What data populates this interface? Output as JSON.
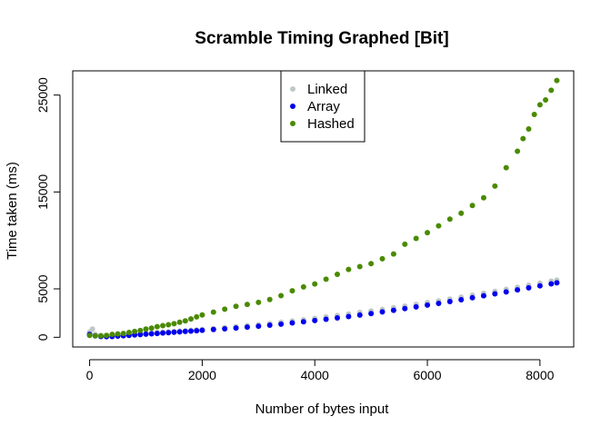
{
  "chart_data": {
    "type": "scatter",
    "title": "Scramble Timing Graphed [Bit]",
    "xlabel": "Number of bytes input",
    "ylabel": "Time taken (ms)",
    "xlim": [
      -300,
      8600
    ],
    "ylim": [
      -1000,
      27500
    ],
    "x_ticks": [
      0,
      2000,
      4000,
      6000,
      8000
    ],
    "y_ticks": [
      0,
      5000,
      15000,
      25000
    ],
    "grid": false,
    "legend_position": "top-center",
    "series": [
      {
        "name": "Linked",
        "color": "#bfc8c8",
        "points": [
          [
            0,
            550
          ],
          [
            50,
            850
          ],
          [
            100,
            300
          ],
          [
            200,
            200
          ],
          [
            300,
            150
          ],
          [
            400,
            250
          ],
          [
            500,
            250
          ],
          [
            600,
            300
          ],
          [
            700,
            330
          ],
          [
            800,
            360
          ],
          [
            900,
            400
          ],
          [
            1000,
            430
          ],
          [
            1100,
            460
          ],
          [
            1200,
            500
          ],
          [
            1300,
            530
          ],
          [
            1400,
            560
          ],
          [
            1500,
            600
          ],
          [
            1600,
            640
          ],
          [
            1700,
            680
          ],
          [
            1800,
            720
          ],
          [
            1900,
            760
          ],
          [
            2000,
            800
          ],
          [
            2200,
            900
          ],
          [
            2400,
            1000
          ],
          [
            2600,
            1100
          ],
          [
            2800,
            1200
          ],
          [
            3000,
            1300
          ],
          [
            3200,
            1420
          ],
          [
            3400,
            1550
          ],
          [
            3600,
            1680
          ],
          [
            3800,
            1810
          ],
          [
            4000,
            1950
          ],
          [
            4200,
            2100
          ],
          [
            4400,
            2250
          ],
          [
            4600,
            2400
          ],
          [
            4800,
            2560
          ],
          [
            5000,
            2720
          ],
          [
            5200,
            2880
          ],
          [
            5400,
            3050
          ],
          [
            5600,
            3220
          ],
          [
            5800,
            3400
          ],
          [
            6000,
            3580
          ],
          [
            6200,
            3760
          ],
          [
            6400,
            3950
          ],
          [
            6600,
            4140
          ],
          [
            6800,
            4340
          ],
          [
            7000,
            4540
          ],
          [
            7200,
            4740
          ],
          [
            7400,
            4950
          ],
          [
            7600,
            5160
          ],
          [
            7800,
            5370
          ],
          [
            8000,
            5580
          ],
          [
            8200,
            5800
          ],
          [
            8300,
            5900
          ]
        ]
      },
      {
        "name": "Array",
        "color": "#0000ee",
        "points": [
          [
            0,
            300
          ],
          [
            100,
            150
          ],
          [
            200,
            80
          ],
          [
            300,
            60
          ],
          [
            400,
            80
          ],
          [
            500,
            120
          ],
          [
            600,
            160
          ],
          [
            700,
            200
          ],
          [
            800,
            240
          ],
          [
            900,
            280
          ],
          [
            1000,
            320
          ],
          [
            1100,
            360
          ],
          [
            1200,
            400
          ],
          [
            1300,
            440
          ],
          [
            1400,
            480
          ],
          [
            1500,
            520
          ],
          [
            1600,
            560
          ],
          [
            1700,
            600
          ],
          [
            1800,
            640
          ],
          [
            1900,
            680
          ],
          [
            2000,
            720
          ],
          [
            2200,
            800
          ],
          [
            2400,
            880
          ],
          [
            2600,
            960
          ],
          [
            2800,
            1050
          ],
          [
            3000,
            1150
          ],
          [
            3200,
            1250
          ],
          [
            3400,
            1360
          ],
          [
            3600,
            1480
          ],
          [
            3800,
            1600
          ],
          [
            4000,
            1730
          ],
          [
            4200,
            1860
          ],
          [
            4400,
            2000
          ],
          [
            4600,
            2140
          ],
          [
            4800,
            2290
          ],
          [
            5000,
            2450
          ],
          [
            5200,
            2620
          ],
          [
            5400,
            2790
          ],
          [
            5600,
            2960
          ],
          [
            5800,
            3140
          ],
          [
            6000,
            3320
          ],
          [
            6200,
            3500
          ],
          [
            6400,
            3690
          ],
          [
            6600,
            3880
          ],
          [
            6800,
            4080
          ],
          [
            7000,
            4280
          ],
          [
            7200,
            4480
          ],
          [
            7400,
            4680
          ],
          [
            7600,
            4890
          ],
          [
            7800,
            5100
          ],
          [
            8000,
            5310
          ],
          [
            8200,
            5520
          ],
          [
            8300,
            5620
          ]
        ]
      },
      {
        "name": "Hashed",
        "color": "#4a8a00",
        "points": [
          [
            0,
            200
          ],
          [
            100,
            150
          ],
          [
            200,
            150
          ],
          [
            300,
            200
          ],
          [
            400,
            300
          ],
          [
            500,
            350
          ],
          [
            600,
            400
          ],
          [
            700,
            500
          ],
          [
            800,
            600
          ],
          [
            900,
            700
          ],
          [
            1000,
            850
          ],
          [
            1100,
            950
          ],
          [
            1200,
            1100
          ],
          [
            1300,
            1200
          ],
          [
            1400,
            1300
          ],
          [
            1500,
            1400
          ],
          [
            1600,
            1550
          ],
          [
            1700,
            1700
          ],
          [
            1800,
            1900
          ],
          [
            1900,
            2100
          ],
          [
            2000,
            2300
          ],
          [
            2200,
            2600
          ],
          [
            2400,
            2900
          ],
          [
            2600,
            3200
          ],
          [
            2800,
            3400
          ],
          [
            3000,
            3600
          ],
          [
            3200,
            3900
          ],
          [
            3400,
            4300
          ],
          [
            3600,
            4800
          ],
          [
            3800,
            5200
          ],
          [
            4000,
            5500
          ],
          [
            4200,
            6000
          ],
          [
            4400,
            6500
          ],
          [
            4600,
            7000
          ],
          [
            4800,
            7300
          ],
          [
            5000,
            7600
          ],
          [
            5200,
            8100
          ],
          [
            5400,
            8600
          ],
          [
            5600,
            9600
          ],
          [
            5800,
            10200
          ],
          [
            6000,
            10800
          ],
          [
            6200,
            11500
          ],
          [
            6400,
            12200
          ],
          [
            6600,
            12800
          ],
          [
            6800,
            13600
          ],
          [
            7000,
            14400
          ],
          [
            7200,
            15600
          ],
          [
            7400,
            17500
          ],
          [
            7600,
            19200
          ],
          [
            7700,
            20500
          ],
          [
            7800,
            21500
          ],
          [
            7900,
            23000
          ],
          [
            8000,
            24000
          ],
          [
            8100,
            24500
          ],
          [
            8200,
            25500
          ],
          [
            8300,
            26500
          ]
        ]
      }
    ]
  }
}
